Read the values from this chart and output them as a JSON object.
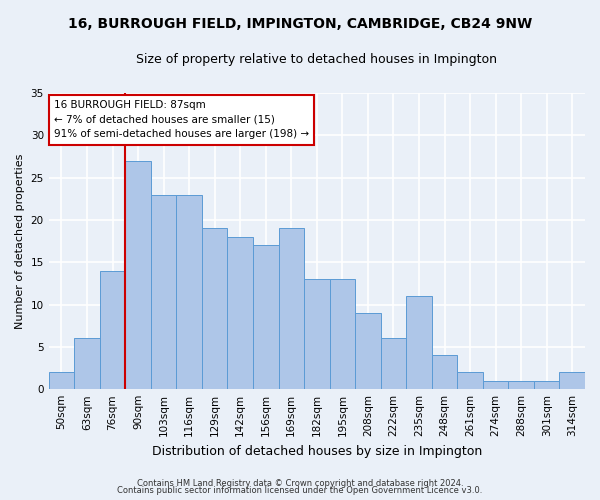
{
  "title": "16, BURROUGH FIELD, IMPINGTON, CAMBRIDGE, CB24 9NW",
  "subtitle": "Size of property relative to detached houses in Impington",
  "xlabel": "Distribution of detached houses by size in Impington",
  "ylabel": "Number of detached properties",
  "bar_labels": [
    "50sqm",
    "63sqm",
    "76sqm",
    "90sqm",
    "103sqm",
    "116sqm",
    "129sqm",
    "142sqm",
    "156sqm",
    "169sqm",
    "182sqm",
    "195sqm",
    "208sqm",
    "222sqm",
    "235sqm",
    "248sqm",
    "261sqm",
    "274sqm",
    "288sqm",
    "301sqm",
    "314sqm"
  ],
  "bar_values": [
    2,
    6,
    14,
    27,
    23,
    23,
    19,
    18,
    17,
    19,
    13,
    13,
    9,
    6,
    11,
    4,
    2,
    1,
    1,
    1,
    2
  ],
  "bar_color": "#aec6e8",
  "bar_edge_color": "#5b9bd5",
  "bg_color": "#eaf0f8",
  "grid_color": "#ffffff",
  "annotation_text_line1": "16 BURROUGH FIELD: 87sqm",
  "annotation_text_line2": "← 7% of detached houses are smaller (15)",
  "annotation_text_line3": "91% of semi-detached houses are larger (198) →",
  "annotation_box_facecolor": "#ffffff",
  "annotation_border_color": "#cc0000",
  "red_line_x": 2.5,
  "ylim": [
    0,
    35
  ],
  "yticks": [
    0,
    5,
    10,
    15,
    20,
    25,
    30,
    35
  ],
  "footer_line1": "Contains HM Land Registry data © Crown copyright and database right 2024.",
  "footer_line2": "Contains public sector information licensed under the Open Government Licence v3.0.",
  "title_fontsize": 10,
  "subtitle_fontsize": 9,
  "ylabel_fontsize": 8,
  "xlabel_fontsize": 9,
  "tick_fontsize": 7.5,
  "annotation_fontsize": 7.5,
  "footer_fontsize": 6
}
